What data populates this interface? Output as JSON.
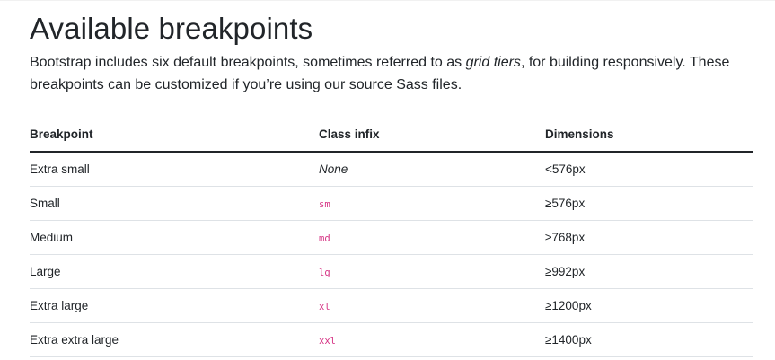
{
  "section": {
    "title": "Available breakpoints",
    "intro_before": "Bootstrap includes six default breakpoints, sometimes referred to as ",
    "intro_em": "grid tiers",
    "intro_after": ", for building responsively. These breakpoints can be customized if you’re using our source Sass files."
  },
  "table": {
    "headers": [
      "Breakpoint",
      "Class infix",
      "Dimensions"
    ],
    "rows": [
      {
        "breakpoint": "Extra small",
        "infix": "None",
        "dimensions": "<576px"
      },
      {
        "breakpoint": "Small",
        "infix": "sm",
        "dimensions": "≥576px"
      },
      {
        "breakpoint": "Medium",
        "infix": "md",
        "dimensions": "≥768px"
      },
      {
        "breakpoint": "Large",
        "infix": "lg",
        "dimensions": "≥992px"
      },
      {
        "breakpoint": "Extra large",
        "infix": "xl",
        "dimensions": "≥1200px"
      },
      {
        "breakpoint": "Extra extra large",
        "infix": "xxl",
        "dimensions": "≥1400px"
      }
    ]
  },
  "colors": {
    "text": "#212529",
    "code": "#d63384",
    "row_border": "#dee2e6"
  }
}
